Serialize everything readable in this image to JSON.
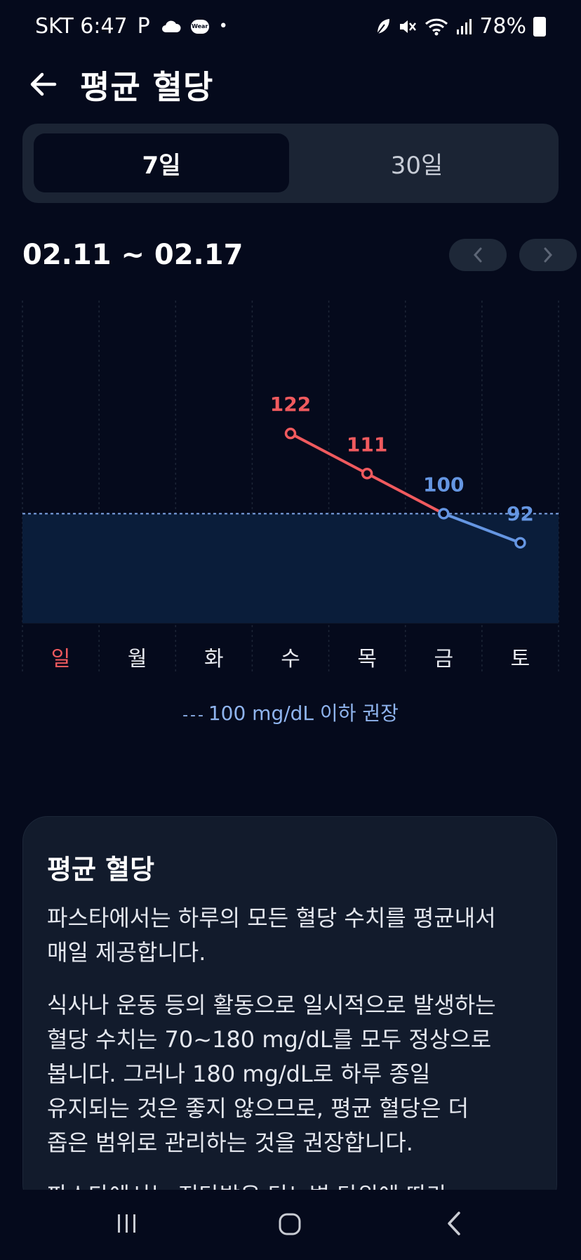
{
  "status": {
    "carrier_time": "SKT 6:47",
    "p_icon": "P",
    "wear_label": "Wear",
    "dot": "•",
    "battery": "78%"
  },
  "header": {
    "title": "평균 혈당"
  },
  "tabs": [
    {
      "label": "7일",
      "active": true
    },
    {
      "label": "30일",
      "active": false
    }
  ],
  "date_range": "02.11 ~ 02.17",
  "chart_data": {
    "type": "line",
    "categories": [
      "일",
      "월",
      "화",
      "수",
      "목",
      "금",
      "토"
    ],
    "values": [
      null,
      null,
      null,
      122,
      111,
      100,
      92
    ],
    "data_labels": [
      "",
      "",
      "",
      "122",
      "111",
      "100",
      "92"
    ],
    "reference_line": 100,
    "colors": {
      "above": "#f05a5e",
      "below": "#6596e2",
      "sunday": "#f05a5e"
    }
  },
  "legend": {
    "dash": "- - -",
    "text": "100 mg/dL 이하 권장"
  },
  "card": {
    "title": "평균 혈당",
    "paragraphs": [
      "파스타에서는 하루의 모든 혈당 수치를 평균내서\n매일 제공합니다.",
      "식사나 운동 등의 활동으로 일시적으로 발생하는\n혈당 수치는 70~180 mg/dL를 모두 정상으로\n봅니다. 그러나 180 mg/dL로 하루 종일\n유지되는 것은 좋지 않으므로, 평균 혈당은 더\n좁은 범위로 관리하는 것을 권장합니다.",
      "파스타에서는 진단받은 당뇨병 단위에 따라"
    ]
  }
}
